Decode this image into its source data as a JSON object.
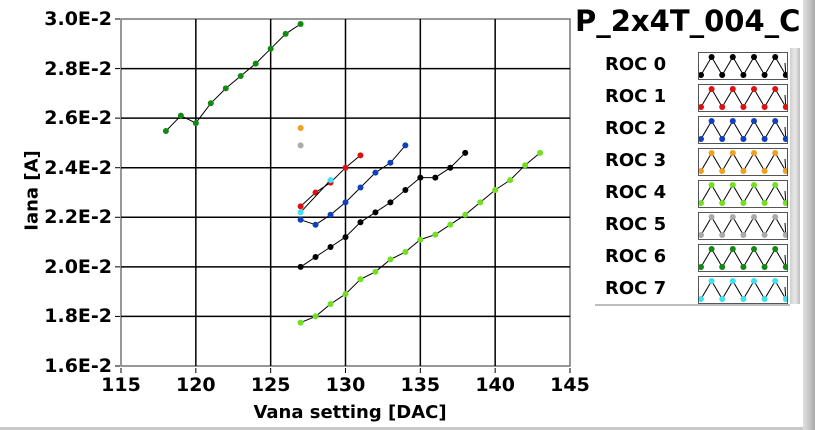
{
  "chart_data": {
    "type": "line",
    "title": "P_2x4T_004_C",
    "xlabel": "Vana setting [DAC]",
    "ylabel": "Iana [A]",
    "xlim": [
      115,
      145
    ],
    "ylim": [
      0.016,
      0.03
    ],
    "xticks": [
      115,
      120,
      125,
      130,
      135,
      140,
      145
    ],
    "xtick_labels": [
      "115",
      "120",
      "125",
      "130",
      "135",
      "140",
      "145"
    ],
    "yticks": [
      0.016,
      0.018,
      0.02,
      0.022,
      0.024,
      0.026,
      0.028,
      0.03
    ],
    "ytick_labels": [
      "1.6E-2",
      "1.8E-2",
      "2.0E-2",
      "2.2E-2",
      "2.4E-2",
      "2.6E-2",
      "2.8E-2",
      "3.0E-2"
    ],
    "grid": true,
    "legend_position": "right",
    "series": [
      {
        "name": "ROC 0",
        "color": "#000000",
        "x": [
          127,
          128,
          129,
          130,
          131,
          132,
          133,
          134,
          135,
          136,
          137,
          138
        ],
        "y": [
          0.02,
          0.0204,
          0.0208,
          0.0212,
          0.0218,
          0.0222,
          0.0226,
          0.0231,
          0.0236,
          0.0236,
          0.024,
          0.0246
        ]
      },
      {
        "name": "ROC 1",
        "color": "#e01010",
        "x": [
          127,
          128,
          129,
          130,
          131
        ],
        "y": [
          0.02244,
          0.023,
          0.0234,
          0.024,
          0.0245
        ]
      },
      {
        "name": "ROC 2",
        "color": "#1040c0",
        "x": [
          127,
          128,
          129,
          130,
          131,
          132,
          133,
          134
        ],
        "y": [
          0.0219,
          0.0217,
          0.0221,
          0.0226,
          0.0232,
          0.0238,
          0.0242,
          0.0249
        ]
      },
      {
        "name": "ROC 3",
        "color": "#f0a020",
        "x": [
          127
        ],
        "y": [
          0.0256
        ]
      },
      {
        "name": "ROC 4",
        "color": "#70e020",
        "x": [
          127,
          128,
          129,
          130,
          131,
          132,
          133,
          134,
          135,
          136,
          137,
          138,
          139,
          140,
          141,
          142,
          143
        ],
        "y": [
          0.01775,
          0.018,
          0.0185,
          0.0189,
          0.0195,
          0.0198,
          0.0203,
          0.0206,
          0.0211,
          0.0213,
          0.0217,
          0.0221,
          0.0226,
          0.0231,
          0.0235,
          0.0241,
          0.0246
        ]
      },
      {
        "name": "ROC 5",
        "color": "#aaaaaa",
        "x": [
          127
        ],
        "y": [
          0.0249
        ]
      },
      {
        "name": "ROC 6",
        "color": "#108a10",
        "x": [
          118,
          119,
          120,
          121,
          122,
          123,
          124,
          125,
          126,
          127
        ],
        "y": [
          0.02548,
          0.0261,
          0.0258,
          0.0266,
          0.0272,
          0.0277,
          0.0282,
          0.0288,
          0.0294,
          0.0298
        ]
      },
      {
        "name": "ROC 7",
        "color": "#40e0f0",
        "x": [
          127,
          129
        ],
        "y": [
          0.0222,
          0.0235
        ]
      }
    ]
  }
}
